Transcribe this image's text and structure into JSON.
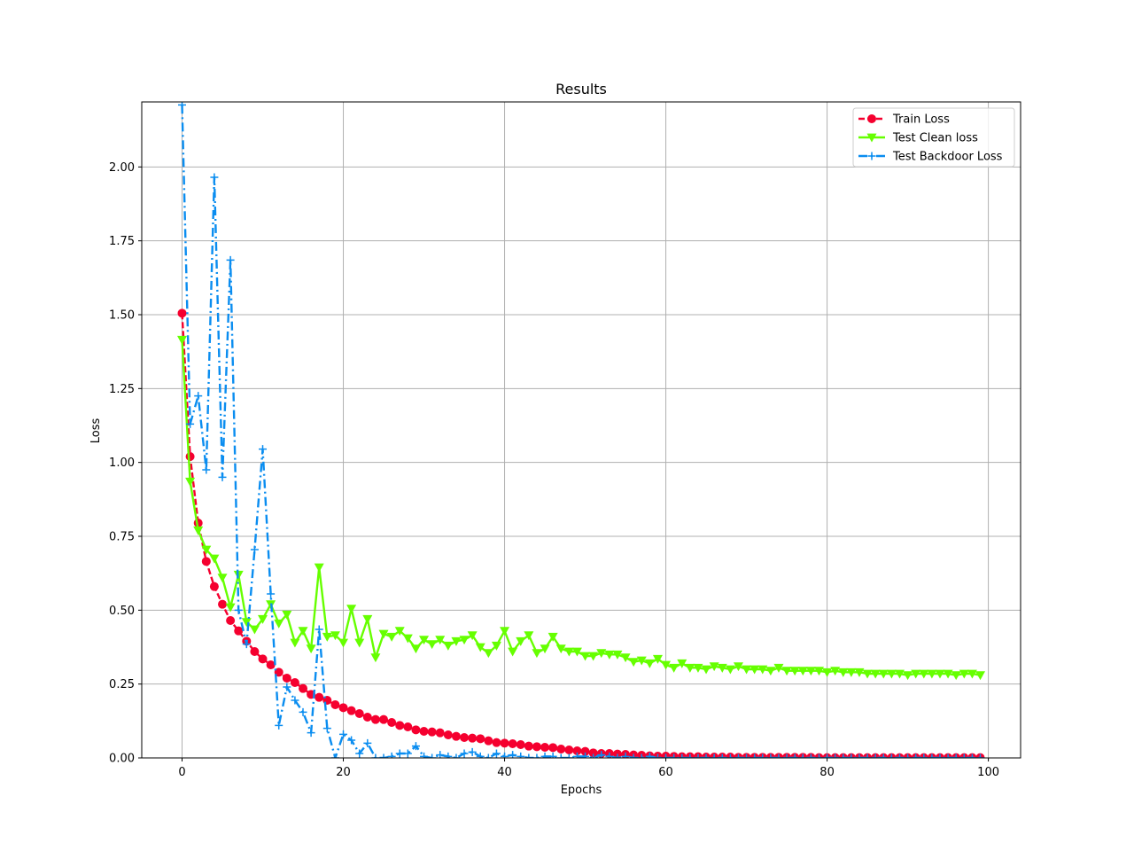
{
  "chart_data": {
    "type": "line",
    "title": "Results",
    "xlabel": "Epochs",
    "ylabel": "Loss",
    "xlim": [
      -5,
      104
    ],
    "ylim": [
      0,
      2.22
    ],
    "xticks": [
      0,
      20,
      40,
      60,
      80,
      100
    ],
    "yticks": [
      0.0,
      0.25,
      0.5,
      0.75,
      1.0,
      1.25,
      1.5,
      1.75,
      2.0
    ],
    "grid": true,
    "legend_position": "top-right",
    "series": [
      {
        "name": "Train Loss",
        "color": "#f5002f",
        "line_style": "dashed",
        "marker": "circle",
        "x": [
          0,
          1,
          2,
          3,
          4,
          5,
          6,
          7,
          8,
          9,
          10,
          11,
          12,
          13,
          14,
          15,
          16,
          17,
          18,
          19,
          20,
          21,
          22,
          23,
          24,
          25,
          26,
          27,
          28,
          29,
          30,
          31,
          32,
          33,
          34,
          35,
          36,
          37,
          38,
          39,
          40,
          41,
          42,
          43,
          44,
          45,
          46,
          47,
          48,
          49,
          50,
          51,
          52,
          53,
          54,
          55,
          56,
          57,
          58,
          59,
          60,
          61,
          62,
          63,
          64,
          65,
          66,
          67,
          68,
          69,
          70,
          71,
          72,
          73,
          74,
          75,
          76,
          77,
          78,
          79,
          80,
          81,
          82,
          83,
          84,
          85,
          86,
          87,
          88,
          89,
          90,
          91,
          92,
          93,
          94,
          95,
          96,
          97,
          98,
          99
        ],
        "y": [
          1.505,
          1.02,
          0.795,
          0.665,
          0.58,
          0.52,
          0.465,
          0.43,
          0.395,
          0.36,
          0.335,
          0.315,
          0.29,
          0.27,
          0.255,
          0.235,
          0.215,
          0.205,
          0.195,
          0.18,
          0.17,
          0.16,
          0.15,
          0.138,
          0.13,
          0.13,
          0.12,
          0.11,
          0.105,
          0.095,
          0.09,
          0.088,
          0.085,
          0.078,
          0.073,
          0.069,
          0.067,
          0.065,
          0.058,
          0.052,
          0.05,
          0.048,
          0.045,
          0.04,
          0.038,
          0.036,
          0.035,
          0.03,
          0.027,
          0.024,
          0.022,
          0.017,
          0.015,
          0.015,
          0.013,
          0.012,
          0.01,
          0.009,
          0.007,
          0.006,
          0.006,
          0.005,
          0.004,
          0.004,
          0.004,
          0.003,
          0.003,
          0.003,
          0.003,
          0.002,
          0.002,
          0.002,
          0.002,
          0.002,
          0.002,
          0.002,
          0.002,
          0.002,
          0.002,
          0.001,
          0.001,
          0.001,
          0.001,
          0.001,
          0.001,
          0.001,
          0.001,
          0.001,
          0.001,
          0.001,
          0.001,
          0.001,
          0.001,
          0.001,
          0.001,
          0.001,
          0.001,
          0.001,
          0.001,
          0.001
        ]
      },
      {
        "name": "Test Clean loss",
        "color": "#66ff00",
        "line_style": "solid",
        "marker": "triangle-down",
        "x": [
          0,
          1,
          2,
          3,
          4,
          5,
          6,
          7,
          8,
          9,
          10,
          11,
          12,
          13,
          14,
          15,
          16,
          17,
          18,
          19,
          20,
          21,
          22,
          23,
          24,
          25,
          26,
          27,
          28,
          29,
          30,
          31,
          32,
          33,
          34,
          35,
          36,
          37,
          38,
          39,
          40,
          41,
          42,
          43,
          44,
          45,
          46,
          47,
          48,
          49,
          50,
          51,
          52,
          53,
          54,
          55,
          56,
          57,
          58,
          59,
          60,
          61,
          62,
          63,
          64,
          65,
          66,
          67,
          68,
          69,
          70,
          71,
          72,
          73,
          74,
          75,
          76,
          77,
          78,
          79,
          80,
          81,
          82,
          83,
          84,
          85,
          86,
          87,
          88,
          89,
          90,
          91,
          92,
          93,
          94,
          95,
          96,
          97,
          98,
          99
        ],
        "y": [
          1.415,
          0.935,
          0.77,
          0.705,
          0.675,
          0.61,
          0.51,
          0.62,
          0.46,
          0.435,
          0.47,
          0.52,
          0.455,
          0.485,
          0.39,
          0.43,
          0.37,
          0.645,
          0.41,
          0.415,
          0.39,
          0.505,
          0.39,
          0.47,
          0.34,
          0.42,
          0.41,
          0.43,
          0.405,
          0.37,
          0.4,
          0.385,
          0.4,
          0.38,
          0.395,
          0.4,
          0.415,
          0.375,
          0.355,
          0.38,
          0.43,
          0.36,
          0.395,
          0.415,
          0.355,
          0.37,
          0.41,
          0.37,
          0.36,
          0.36,
          0.345,
          0.345,
          0.355,
          0.35,
          0.35,
          0.34,
          0.325,
          0.33,
          0.32,
          0.335,
          0.315,
          0.305,
          0.32,
          0.305,
          0.305,
          0.3,
          0.31,
          0.305,
          0.3,
          0.31,
          0.3,
          0.3,
          0.3,
          0.295,
          0.305,
          0.295,
          0.295,
          0.295,
          0.295,
          0.295,
          0.29,
          0.295,
          0.29,
          0.29,
          0.29,
          0.285,
          0.285,
          0.285,
          0.285,
          0.285,
          0.28,
          0.285,
          0.285,
          0.285,
          0.285,
          0.285,
          0.28,
          0.285,
          0.285,
          0.28
        ]
      },
      {
        "name": "Test Backdoor Loss",
        "color": "#0a8df0",
        "line_style": "dashdot",
        "marker": "plus",
        "x": [
          0,
          1,
          2,
          3,
          4,
          5,
          6,
          7,
          8,
          9,
          10,
          11,
          12,
          13,
          14,
          15,
          16,
          17,
          18,
          19,
          20,
          21,
          22,
          23,
          24,
          25,
          26,
          27,
          28,
          29,
          30,
          31,
          32,
          33,
          34,
          35,
          36,
          37,
          38,
          39,
          40,
          41,
          42,
          43,
          44,
          45,
          46,
          47,
          48,
          49,
          50,
          51,
          52,
          53,
          54,
          55,
          56,
          57,
          58,
          59,
          60,
          61,
          62,
          63,
          64,
          65,
          66,
          67,
          68,
          69,
          70,
          71,
          72,
          73,
          74,
          75,
          76,
          77,
          78,
          79,
          80,
          81,
          82,
          83,
          84,
          85,
          86,
          87,
          88,
          89,
          90,
          91,
          92,
          93,
          94,
          95,
          96,
          97,
          98,
          99
        ],
        "y": [
          2.21,
          1.13,
          1.225,
          0.975,
          1.965,
          0.95,
          1.685,
          0.5,
          0.385,
          0.705,
          1.045,
          0.555,
          0.11,
          0.24,
          0.195,
          0.155,
          0.085,
          0.435,
          0.1,
          0.0,
          0.08,
          0.06,
          0.015,
          0.05,
          0.0,
          0.0,
          0.005,
          0.015,
          0.015,
          0.04,
          0.005,
          0.0,
          0.01,
          0.005,
          0.0,
          0.015,
          0.02,
          0.005,
          0.0,
          0.015,
          0.005,
          0.01,
          0.005,
          0.0,
          0.0,
          0.005,
          0.005,
          0.0,
          0.0,
          0.005,
          0.005,
          0.0,
          0.01,
          0.005,
          0.0,
          0.005,
          0.0,
          0.0,
          0.005,
          0.0,
          0.0,
          0.0,
          0.0,
          0.0,
          0.0,
          0.0,
          0.0,
          0.0,
          0.0,
          0.0,
          0.0,
          0.0,
          0.0,
          0.0,
          0.0,
          0.0,
          0.0,
          0.0,
          0.0,
          0.0,
          0.0,
          0.0,
          0.0,
          0.0,
          0.0,
          0.0,
          0.0,
          0.0,
          0.0,
          0.0,
          0.0,
          0.0,
          0.0,
          0.0,
          0.0,
          0.0,
          0.0,
          0.0,
          0.0,
          0.0
        ]
      }
    ]
  }
}
